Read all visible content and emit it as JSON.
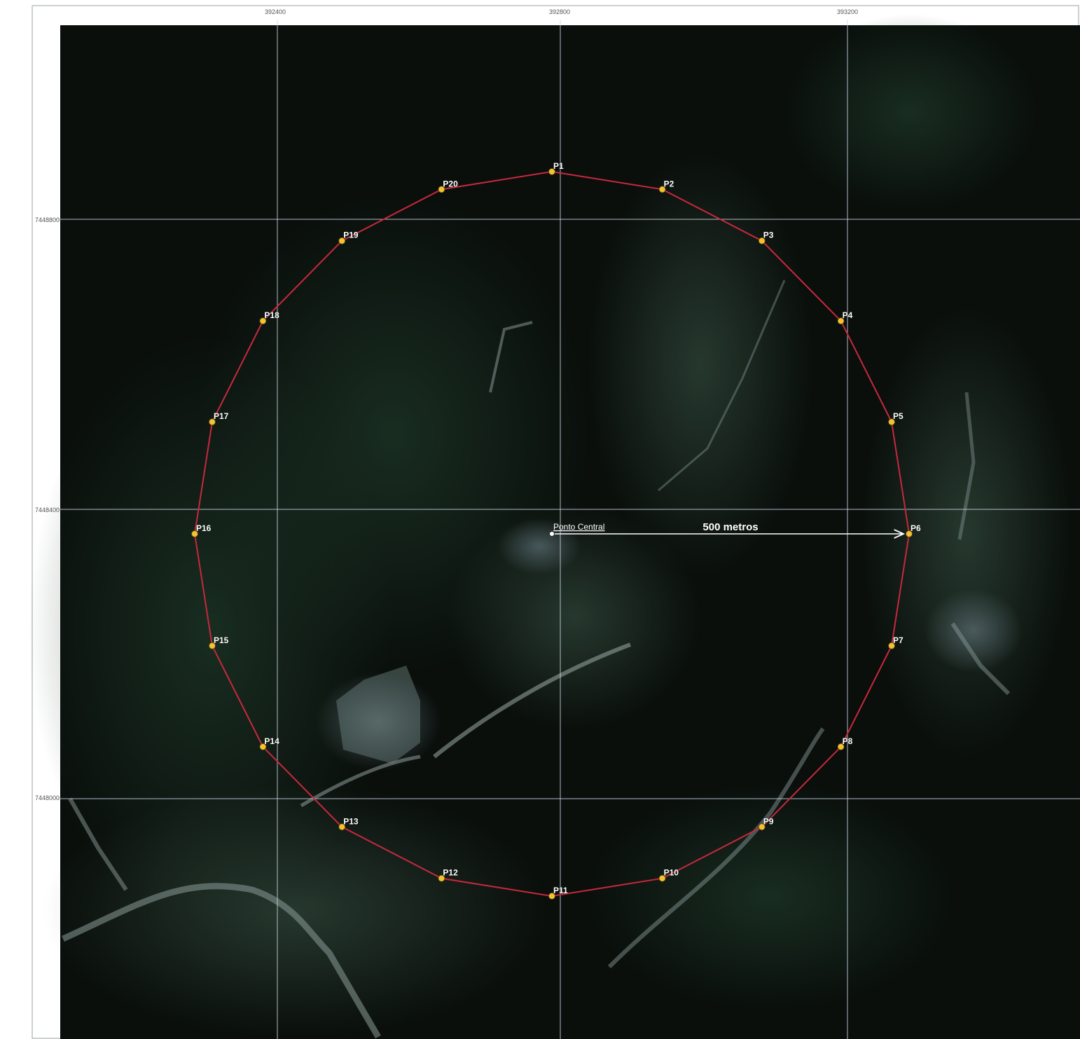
{
  "map": {
    "grid": {
      "x_ticks": [
        "392400",
        "392800",
        "393200"
      ],
      "y_ticks": [
        "7448800",
        "7448400",
        "7448000"
      ]
    },
    "center": {
      "label": "Ponto Central"
    },
    "radius_label": "500 metros",
    "points": [
      {
        "id": "P1"
      },
      {
        "id": "P2"
      },
      {
        "id": "P3"
      },
      {
        "id": "P4"
      },
      {
        "id": "P5"
      },
      {
        "id": "P6"
      },
      {
        "id": "P7"
      },
      {
        "id": "P8"
      },
      {
        "id": "P9"
      },
      {
        "id": "P10"
      },
      {
        "id": "P11"
      },
      {
        "id": "P12"
      },
      {
        "id": "P13"
      },
      {
        "id": "P14"
      },
      {
        "id": "P15"
      },
      {
        "id": "P16"
      },
      {
        "id": "P17"
      },
      {
        "id": "P18"
      },
      {
        "id": "P19"
      },
      {
        "id": "P20"
      }
    ],
    "colors": {
      "circle": "#c8283c",
      "point": "#f2c230",
      "grid": "#cfd8e8"
    }
  }
}
